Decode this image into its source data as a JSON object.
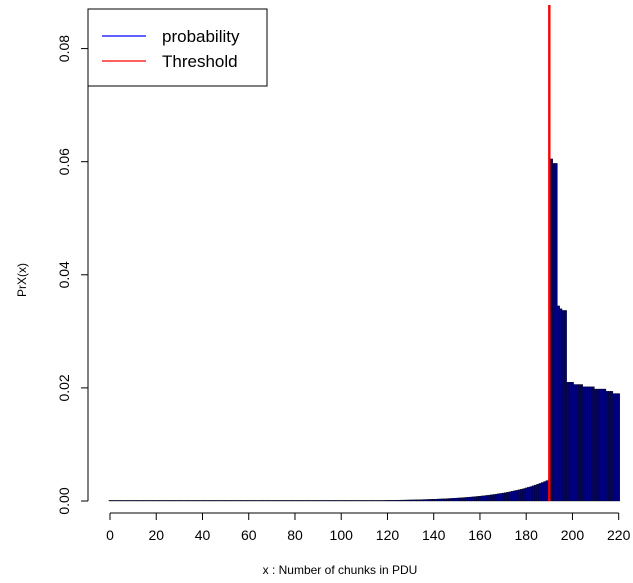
{
  "chart_data": {
    "type": "bar",
    "title": "",
    "xlabel": "x : Number of chunks in PDU",
    "ylabel": "PrX(x)",
    "xlim": [
      0,
      221
    ],
    "ylim": [
      0,
      0.087
    ],
    "x_ticks": [
      0,
      20,
      40,
      60,
      80,
      100,
      120,
      140,
      160,
      180,
      200,
      220
    ],
    "y_ticks": [
      0.0,
      0.02,
      0.04,
      0.06,
      0.08
    ],
    "y_tick_labels": [
      "0.00",
      "0.02",
      "0.04",
      "0.06",
      "0.08"
    ],
    "grid": false,
    "legend_position": "top-left",
    "bar_color": "#000080",
    "threshold": 190,
    "series": [
      {
        "name": "probability",
        "color": "#0000ff",
        "segments": [
          {
            "x_from": 0,
            "x_to": 190,
            "model": "exponential",
            "y_start": 3e-07,
            "y_end": 0.0038
          },
          {
            "x_from": 191,
            "x_to": 191,
            "y": 0.0605
          },
          {
            "x_from": 192,
            "x_to": 193,
            "y": 0.0597
          },
          {
            "x_from": 194,
            "x_to": 194,
            "y": 0.0345
          },
          {
            "x_from": 195,
            "x_to": 195,
            "y": 0.034
          },
          {
            "x_from": 196,
            "x_to": 197,
            "y": 0.0337
          },
          {
            "x_from": 198,
            "x_to": 200,
            "y": 0.021
          },
          {
            "x_from": 201,
            "x_to": 204,
            "y": 0.0206
          },
          {
            "x_from": 205,
            "x_to": 209,
            "y": 0.0202
          },
          {
            "x_from": 210,
            "x_to": 214,
            "y": 0.0198
          },
          {
            "x_from": 215,
            "x_to": 217,
            "y": 0.0194
          },
          {
            "x_from": 218,
            "x_to": 220,
            "y": 0.019
          }
        ]
      },
      {
        "name": "Threshold",
        "color": "#ff0000",
        "x": 190
      }
    ]
  }
}
